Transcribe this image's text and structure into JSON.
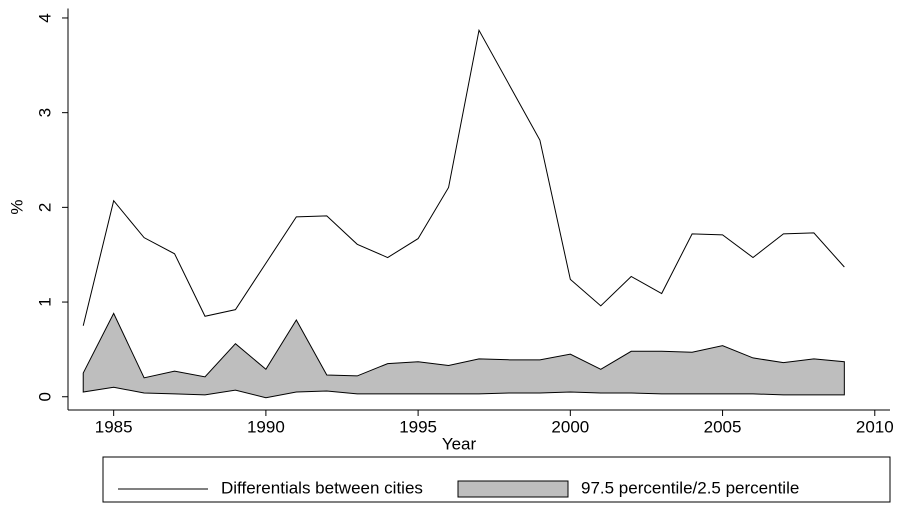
{
  "chart_data": {
    "type": "line-band",
    "x_label": "Year",
    "y_label": "%",
    "x": [
      1984,
      1985,
      1986,
      1987,
      1988,
      1989,
      1990,
      1991,
      1992,
      1993,
      1994,
      1995,
      1996,
      1997,
      1998,
      1999,
      2000,
      2001,
      2002,
      2003,
      2004,
      2005,
      2006,
      2007,
      2008,
      2009
    ],
    "series": [
      {
        "name": "Differentials between cities",
        "color": "#000000",
        "values": [
          0.75,
          2.07,
          1.68,
          1.51,
          0.85,
          0.92,
          1.41,
          1.9,
          1.91,
          1.61,
          1.47,
          1.67,
          2.21,
          3.87,
          3.29,
          2.71,
          1.24,
          0.96,
          1.27,
          1.09,
          1.72,
          1.71,
          1.47,
          1.72,
          1.73,
          1.37
        ]
      },
      {
        "name": "97.5 percentile/2.5 percentile",
        "color": "#bebebe",
        "upper": [
          0.25,
          0.88,
          0.2,
          0.27,
          0.21,
          0.56,
          0.29,
          0.81,
          0.23,
          0.22,
          0.35,
          0.37,
          0.33,
          0.4,
          0.39,
          0.39,
          0.45,
          0.29,
          0.48,
          0.48,
          0.47,
          0.54,
          0.41,
          0.36,
          0.4,
          0.37
        ],
        "lower": [
          0.05,
          0.1,
          0.04,
          0.03,
          0.02,
          0.07,
          -0.01,
          0.05,
          0.06,
          0.03,
          0.03,
          0.03,
          0.03,
          0.03,
          0.04,
          0.04,
          0.05,
          0.04,
          0.04,
          0.03,
          0.03,
          0.03,
          0.03,
          0.02,
          0.02,
          0.02
        ]
      }
    ],
    "xlim": [
      1983.5,
      2010.5
    ],
    "xticks": [
      1985,
      1990,
      1995,
      2000,
      2005,
      2010
    ],
    "ylim": [
      -0.14,
      4.1
    ],
    "yticks": [
      0,
      1,
      2,
      3,
      4
    ]
  }
}
